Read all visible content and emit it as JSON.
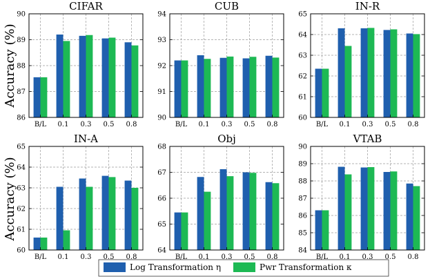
{
  "colors": {
    "log": "#1f5fae",
    "pwr": "#1db954"
  },
  "legend": {
    "log_label": "Log Transformation η",
    "pwr_label": "Pwr Transformation κ"
  },
  "ylabel": "Accuracy (%)",
  "chart_data": [
    {
      "type": "bar",
      "title": "CIFAR",
      "categories": [
        "B/L",
        "0.1",
        "0.3",
        "0.5",
        "0.8"
      ],
      "series": [
        {
          "name": "Log Transformation η",
          "values": [
            87.55,
            89.2,
            89.15,
            89.05,
            88.9
          ]
        },
        {
          "name": "Pwr Transformation κ",
          "values": [
            87.55,
            88.95,
            89.18,
            89.08,
            88.78
          ]
        }
      ],
      "ylim": [
        86,
        90
      ],
      "yticks": [
        86,
        87,
        88,
        89,
        90
      ],
      "ylabel": "Accuracy (%)",
      "grid": true
    },
    {
      "type": "bar",
      "title": "CUB",
      "categories": [
        "B/L",
        "0.1",
        "0.3",
        "0.5",
        "0.8"
      ],
      "series": [
        {
          "name": "Log Transformation η",
          "values": [
            92.2,
            92.4,
            92.3,
            92.28,
            92.38
          ]
        },
        {
          "name": "Pwr Transformation κ",
          "values": [
            92.2,
            92.26,
            92.35,
            92.34,
            92.31
          ]
        }
      ],
      "ylim": [
        90,
        94
      ],
      "yticks": [
        90,
        91,
        92,
        93,
        94
      ],
      "grid": true
    },
    {
      "type": "bar",
      "title": "IN-R",
      "categories": [
        "B/L",
        "0.1",
        "0.3",
        "0.5",
        "0.8"
      ],
      "series": [
        {
          "name": "Log Transformation η",
          "values": [
            62.35,
            64.3,
            64.3,
            64.22,
            64.05
          ]
        },
        {
          "name": "Pwr Transformation κ",
          "values": [
            62.35,
            63.45,
            64.32,
            64.25,
            64.02
          ]
        }
      ],
      "ylim": [
        60,
        65
      ],
      "yticks": [
        60,
        61,
        62,
        63,
        64,
        65
      ],
      "grid": true
    },
    {
      "type": "bar",
      "title": "IN-A",
      "categories": [
        "B/L",
        "0.1",
        "0.3",
        "0.5",
        "0.8"
      ],
      "series": [
        {
          "name": "Log Transformation η",
          "values": [
            60.6,
            63.05,
            63.45,
            63.58,
            63.35
          ]
        },
        {
          "name": "Pwr Transformation κ",
          "values": [
            60.6,
            60.95,
            63.05,
            63.52,
            63.0
          ]
        }
      ],
      "ylim": [
        60,
        65
      ],
      "yticks": [
        60,
        61,
        62,
        63,
        64,
        65
      ],
      "ylabel": "Accuracy (%)",
      "grid": true
    },
    {
      "type": "bar",
      "title": "Obj",
      "categories": [
        "B/L",
        "0.1",
        "0.3",
        "0.5",
        "0.8"
      ],
      "series": [
        {
          "name": "Log Transformation η",
          "values": [
            65.45,
            66.82,
            67.12,
            67.0,
            66.62
          ]
        },
        {
          "name": "Pwr Transformation κ",
          "values": [
            65.45,
            66.25,
            66.85,
            66.98,
            66.58
          ]
        }
      ],
      "ylim": [
        64,
        68
      ],
      "yticks": [
        64,
        65,
        66,
        67,
        68
      ],
      "grid": true
    },
    {
      "type": "bar",
      "title": "VTAB",
      "categories": [
        "B/L",
        "0.1",
        "0.3",
        "0.5",
        "0.8"
      ],
      "series": [
        {
          "name": "Log Transformation η",
          "values": [
            86.3,
            88.82,
            88.78,
            88.52,
            87.85
          ]
        },
        {
          "name": "Pwr Transformation κ",
          "values": [
            86.3,
            88.38,
            88.8,
            88.55,
            87.7
          ]
        }
      ],
      "ylim": [
        84,
        90
      ],
      "yticks": [
        84,
        85,
        86,
        87,
        88,
        89,
        90
      ],
      "grid": true
    }
  ]
}
